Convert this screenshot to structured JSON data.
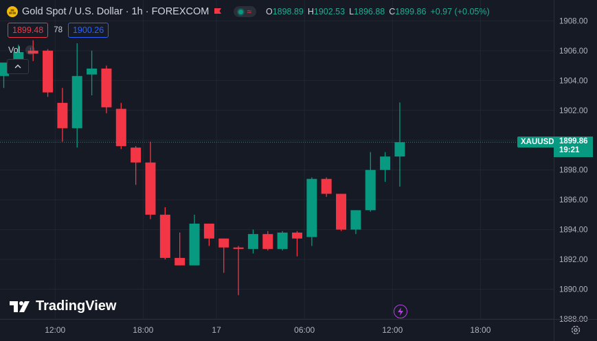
{
  "header": {
    "title": "Gold Spot / U.S. Dollar · 1h · FOREXCOM",
    "ohlc": {
      "o_label": "O",
      "o_value": "1898.89",
      "h_label": "H",
      "h_value": "1902.53",
      "l_label": "L",
      "l_value": "1896.88",
      "c_label": "C",
      "c_value": "1899.86",
      "change": "+0.97 (+0.05%)"
    }
  },
  "trade": {
    "bid": "1899.48",
    "spread": "78",
    "ask": "1900.26"
  },
  "indicator": {
    "label": "Vol"
  },
  "last_price": {
    "symbol": "XAUUSD",
    "price": "1899.86",
    "countdown": "19:21"
  },
  "branding": {
    "logo_text": "TradingView"
  },
  "colors": {
    "background": "#161a25",
    "grid": "#222631",
    "up": "#089981",
    "down": "#f23645",
    "axis_text": "#b2b5be",
    "price_line": "#089981"
  },
  "chart_data": {
    "type": "candlestick",
    "y_ticks": [
      "1908.00",
      "1906.00",
      "1904.00",
      "1902.00",
      "1900.00",
      "1898.00",
      "1896.00",
      "1894.00",
      "1892.00",
      "1890.00",
      "1888.00"
    ],
    "y_range": [
      1888.0,
      1908.8
    ],
    "x_tick_labels": [
      {
        "label": "12:00",
        "bar": 3.5
      },
      {
        "label": "18:00",
        "bar": 9.5
      },
      {
        "label": "17",
        "bar": 14.5
      },
      {
        "label": "06:00",
        "bar": 20.5
      },
      {
        "label": "12:00",
        "bar": 26.5
      },
      {
        "label": "18:00",
        "bar": 32.5
      }
    ],
    "candles": [
      {
        "o": 1904.3,
        "h": 1905.2,
        "l": 1903.5,
        "c": 1905.2
      },
      {
        "o": 1905.3,
        "h": 1906.4,
        "l": 1904.9,
        "c": 1905.9
      },
      {
        "o": 1906.0,
        "h": 1906.7,
        "l": 1905.3,
        "c": 1905.8
      },
      {
        "o": 1906.0,
        "h": 1906.1,
        "l": 1902.9,
        "c": 1903.2
      },
      {
        "o": 1902.5,
        "h": 1903.5,
        "l": 1899.9,
        "c": 1900.8
      },
      {
        "o": 1900.8,
        "h": 1906.5,
        "l": 1899.5,
        "c": 1904.3
      },
      {
        "o": 1904.4,
        "h": 1906.0,
        "l": 1903.0,
        "c": 1904.8
      },
      {
        "o": 1904.8,
        "h": 1905.0,
        "l": 1901.8,
        "c": 1902.2
      },
      {
        "o": 1902.1,
        "h": 1902.5,
        "l": 1899.4,
        "c": 1899.6
      },
      {
        "o": 1899.5,
        "h": 1899.6,
        "l": 1897.0,
        "c": 1898.5
      },
      {
        "o": 1898.5,
        "h": 1899.9,
        "l": 1894.7,
        "c": 1895.0
      },
      {
        "o": 1895.0,
        "h": 1895.5,
        "l": 1892.0,
        "c": 1892.1
      },
      {
        "o": 1892.1,
        "h": 1893.8,
        "l": 1891.6,
        "c": 1891.6
      },
      {
        "o": 1891.6,
        "h": 1895.0,
        "l": 1891.6,
        "c": 1894.4
      },
      {
        "o": 1894.4,
        "h": 1894.4,
        "l": 1892.9,
        "c": 1893.4
      },
      {
        "o": 1893.4,
        "h": 1893.4,
        "l": 1891.1,
        "c": 1892.8
      },
      {
        "o": 1892.8,
        "h": 1892.9,
        "l": 1889.6,
        "c": 1892.7
      },
      {
        "o": 1892.7,
        "h": 1894.0,
        "l": 1892.4,
        "c": 1893.7
      },
      {
        "o": 1893.7,
        "h": 1893.9,
        "l": 1892.6,
        "c": 1892.7
      },
      {
        "o": 1892.7,
        "h": 1893.9,
        "l": 1892.6,
        "c": 1893.8
      },
      {
        "o": 1893.8,
        "h": 1893.9,
        "l": 1892.2,
        "c": 1893.4
      },
      {
        "o": 1893.5,
        "h": 1897.5,
        "l": 1892.9,
        "c": 1897.4
      },
      {
        "o": 1897.4,
        "h": 1897.5,
        "l": 1896.2,
        "c": 1896.4
      },
      {
        "o": 1896.4,
        "h": 1896.4,
        "l": 1893.9,
        "c": 1894.0
      },
      {
        "o": 1894.0,
        "h": 1895.3,
        "l": 1893.7,
        "c": 1895.3
      },
      {
        "o": 1895.3,
        "h": 1899.2,
        "l": 1895.2,
        "c": 1898.0
      },
      {
        "o": 1898.0,
        "h": 1899.2,
        "l": 1897.2,
        "c": 1898.9
      },
      {
        "o": 1898.9,
        "h": 1902.53,
        "l": 1896.88,
        "c": 1899.86
      }
    ]
  }
}
